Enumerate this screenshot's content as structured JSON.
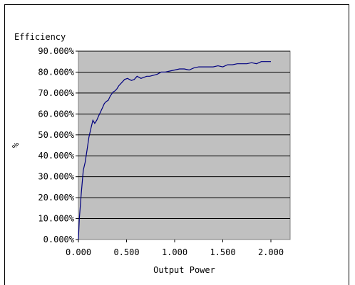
{
  "chart_data": {
    "type": "line",
    "title": "Efficiency",
    "xlabel": "Output Power",
    "ylabel": "%",
    "xlim": [
      0,
      2.2
    ],
    "ylim": [
      0,
      0.9
    ],
    "xticks": [
      0,
      0.5,
      1.0,
      1.5,
      2.0
    ],
    "xtick_labels": [
      "0.000",
      "0.500",
      "1.000",
      "1.500",
      "2.000"
    ],
    "yticks": [
      0,
      0.1,
      0.2,
      0.3,
      0.4,
      0.5,
      0.6,
      0.7,
      0.8,
      0.9
    ],
    "ytick_labels": [
      "0.000%",
      "10.000%",
      "20.000%",
      "30.000%",
      "40.000%",
      "50.000%",
      "60.000%",
      "70.000%",
      "80.000%",
      "90.000%"
    ],
    "grid": "horizontal",
    "legend": "none",
    "plot_background": "#c0c0c0",
    "line_color": "#000080",
    "series": [
      {
        "x": [
          0.0,
          0.01,
          0.03,
          0.05,
          0.07,
          0.09,
          0.11,
          0.13,
          0.15,
          0.17,
          0.19,
          0.21,
          0.23,
          0.25,
          0.27,
          0.29,
          0.31,
          0.33,
          0.36,
          0.38,
          0.4,
          0.42,
          0.45,
          0.48,
          0.51,
          0.55,
          0.58,
          0.61,
          0.65,
          0.68,
          0.71,
          0.74,
          0.78,
          0.82,
          0.86,
          0.9,
          0.95,
          1.0,
          1.05,
          1.1,
          1.15,
          1.2,
          1.25,
          1.3,
          1.35,
          1.4,
          1.45,
          1.5,
          1.55,
          1.6,
          1.65,
          1.7,
          1.75,
          1.8,
          1.85,
          1.9,
          1.95,
          2.0
        ],
        "y": [
          0.0,
          0.1,
          0.22,
          0.33,
          0.37,
          0.43,
          0.49,
          0.53,
          0.57,
          0.555,
          0.57,
          0.59,
          0.61,
          0.63,
          0.65,
          0.66,
          0.665,
          0.685,
          0.705,
          0.71,
          0.72,
          0.735,
          0.75,
          0.765,
          0.77,
          0.76,
          0.765,
          0.78,
          0.77,
          0.775,
          0.78,
          0.78,
          0.785,
          0.79,
          0.8,
          0.8,
          0.805,
          0.81,
          0.815,
          0.815,
          0.81,
          0.82,
          0.825,
          0.825,
          0.825,
          0.825,
          0.83,
          0.825,
          0.835,
          0.835,
          0.84,
          0.84,
          0.84,
          0.845,
          0.84,
          0.85,
          0.85,
          0.85
        ]
      }
    ]
  }
}
